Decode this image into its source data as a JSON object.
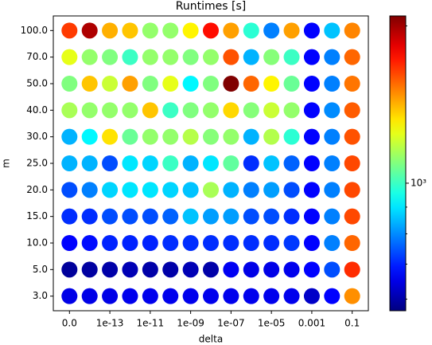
{
  "chart_data": {
    "type": "heatmap",
    "title": "Runtimes [s]",
    "x_label": "delta",
    "y_label": "m",
    "x": [
      "0.0",
      null,
      "1e-13",
      null,
      "1e-11",
      null,
      "1e-09",
      null,
      "1e-07",
      null,
      "1e-05",
      null,
      "0.001",
      null,
      "0.1"
    ],
    "y": [
      "100.0",
      "70.0",
      "50.0",
      "40.0",
      "30.0",
      "25.0",
      "20.0",
      "15.0",
      "10.0",
      "5.0",
      "3.0"
    ],
    "values": [
      [
        1650,
        1970,
        1420,
        1382,
        1120,
        1120,
        1300,
        1750,
        1450,
        980,
        789,
        1450,
        671,
        860,
        1500
      ],
      [
        1245,
        1120,
        1092,
        1000,
        1120,
        1120,
        1092,
        1120,
        1600,
        842,
        1100,
        1000,
        671,
        789,
        1560
      ],
      [
        1092,
        1382,
        1200,
        1450,
        1092,
        1245,
        920,
        1092,
        2090,
        1560,
        1300,
        1060,
        671,
        789,
        1530
      ],
      [
        1150,
        1120,
        1120,
        1120,
        1382,
        1000,
        1092,
        1120,
        1350,
        1100,
        1200,
        1120,
        671,
        800,
        1580
      ],
      [
        842,
        920,
        1330,
        1060,
        1120,
        1120,
        1170,
        1100,
        1120,
        842,
        1165,
        980,
        671,
        789,
        1600
      ],
      [
        842,
        842,
        740,
        900,
        880,
        1000,
        842,
        899,
        1050,
        710,
        860,
        760,
        671,
        789,
        1620
      ],
      [
        740,
        789,
        880,
        899,
        899,
        880,
        860,
        1150,
        842,
        789,
        820,
        740,
        671,
        789,
        1620
      ],
      [
        710,
        710,
        740,
        740,
        740,
        760,
        860,
        820,
        820,
        740,
        740,
        710,
        671,
        789,
        1620
      ],
      [
        671,
        680,
        700,
        700,
        700,
        710,
        710,
        710,
        710,
        710,
        710,
        720,
        671,
        789,
        1560
      ],
      [
        590,
        595,
        600,
        610,
        600,
        600,
        610,
        600,
        660,
        650,
        650,
        655,
        671,
        740,
        1680
      ],
      [
        650,
        650,
        650,
        655,
        655,
        655,
        655,
        655,
        655,
        655,
        655,
        655,
        625,
        671,
        1480
      ]
    ],
    "colormap": "jet",
    "log_scale": true,
    "clim": [
      570,
      2090
    ],
    "colorbar_ticks": [
      {
        "value": 1000,
        "label": "10³"
      }
    ],
    "colorbar_minor_ticks": [
      600,
      700,
      800,
      900,
      2000
    ]
  }
}
